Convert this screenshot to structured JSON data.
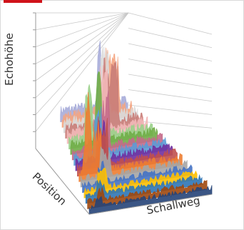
{
  "accent_color": "#d0121a",
  "chart_data": {
    "type": "area",
    "view": "3d-waterfall",
    "title": "",
    "axes": {
      "y_label": "Echohöhe",
      "x_label": "Schallweg",
      "z_label": "Position"
    },
    "grid": true,
    "y_ticks": 8,
    "legend": "none",
    "series": [
      {
        "color": "#a7acd9",
        "profile": [
          {
            "x": 0.55,
            "w": 0.06,
            "h": 0.7
          }
        ]
      },
      {
        "color": "#f4a582",
        "profile": [
          {
            "x": 0.6,
            "w": 0.2,
            "h": 0.55
          }
        ]
      },
      {
        "color": "#d9d9d9",
        "profile": [
          {
            "x": 0.5,
            "w": 0.12,
            "h": 0.62
          }
        ]
      },
      {
        "color": "#c97d78",
        "profile": [
          {
            "x": 0.48,
            "w": 0.2,
            "h": 0.6
          }
        ]
      },
      {
        "color": "#f2b8b8",
        "profile": [
          {
            "x": 0.4,
            "w": 0.1,
            "h": 0.66
          }
        ]
      },
      {
        "color": "#9ad08a",
        "profile": [
          {
            "x": 0.2,
            "w": 0.08,
            "h": 0.52
          }
        ]
      },
      {
        "color": "#70ad47",
        "profile": [
          {
            "x": 0.28,
            "w": 0.08,
            "h": 0.7
          }
        ]
      },
      {
        "color": "#c46a8a",
        "profile": [
          {
            "x": 0.32,
            "w": 0.1,
            "h": 0.58
          }
        ]
      },
      {
        "color": "#5b9bd5",
        "profile": [
          {
            "x": 0.22,
            "w": 0.08,
            "h": 0.5
          }
        ]
      },
      {
        "color": "#7030a0",
        "profile": [
          {
            "x": 0.24,
            "w": 0.06,
            "h": 0.46
          }
        ]
      },
      {
        "color": "#c0504d",
        "profile": [
          {
            "x": 0.2,
            "w": 0.1,
            "h": 0.55
          }
        ]
      },
      {
        "color": "#ed7d31",
        "profile": [
          {
            "x": 0.06,
            "w": 0.06,
            "h": 0.88
          },
          {
            "x": 0.14,
            "w": 0.08,
            "h": 0.6
          }
        ]
      },
      {
        "color": "#a5a5a5",
        "profile": [
          {
            "x": 0.18,
            "w": 0.1,
            "h": 0.4
          }
        ]
      },
      {
        "color": "#4472c4",
        "profile": [
          {
            "x": 0.14,
            "w": 0.06,
            "h": 0.36
          }
        ]
      },
      {
        "color": "#ffc000",
        "profile": [
          {
            "x": 0.12,
            "w": 0.08,
            "h": 0.3
          }
        ]
      },
      {
        "color": "#2e75b6",
        "profile": [
          {
            "x": 0.1,
            "w": 0.06,
            "h": 0.26
          }
        ]
      },
      {
        "color": "#9e480e",
        "profile": [
          {
            "x": 0.08,
            "w": 0.06,
            "h": 0.24
          }
        ]
      },
      {
        "color": "#264478",
        "profile": [
          {
            "x": 0.05,
            "w": 0.06,
            "h": 0.2
          }
        ]
      }
    ]
  }
}
